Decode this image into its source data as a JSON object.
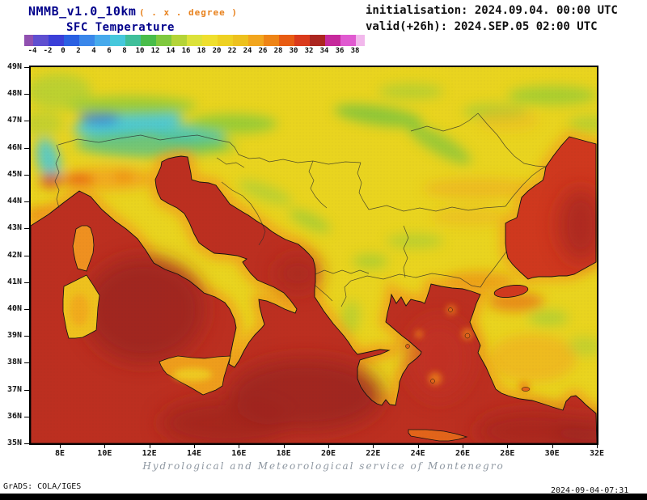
{
  "header": {
    "model_title": "NMMB_v1.0_10km",
    "degree_note": "( . x . degree )",
    "field_title": "SFC Temperature",
    "init_line": "initialisation: 2024.09.04. 00:00 UTC",
    "valid_line": "valid(+26h): 2024.SEP.05 02:00 UTC"
  },
  "colorbar": {
    "tick_labels": [
      "-4",
      "-2",
      "0",
      "2",
      "4",
      "6",
      "8",
      "10",
      "12",
      "14",
      "16",
      "18",
      "20",
      "22",
      "24",
      "26",
      "28",
      "30",
      "32",
      "34",
      "36",
      "38"
    ],
    "cell_colors": [
      "#9050b0",
      "#5f4fd0",
      "#3b3fd8",
      "#2a60e2",
      "#3a87ea",
      "#47aaec",
      "#46c8dc",
      "#3fbf9a",
      "#49bd4a",
      "#7fc93e",
      "#b4d438",
      "#dce23a",
      "#efdf2e",
      "#eed122",
      "#edc11e",
      "#f2a61e",
      "#ee8416",
      "#e85c13",
      "#da3a1c",
      "#ab2620",
      "#c6299c",
      "#e05ad0",
      "#f2b8ec"
    ]
  },
  "map": {
    "lat_labels": [
      "49N",
      "48N",
      "47N",
      "46N",
      "45N",
      "44N",
      "43N",
      "42N",
      "41N",
      "40N",
      "39N",
      "38N",
      "37N",
      "36N",
      "35N"
    ],
    "lon_labels": [
      "8E",
      "10E",
      "12E",
      "14E",
      "16E",
      "18E",
      "20E",
      "22E",
      "24E",
      "26E",
      "28E",
      "30E",
      "32E"
    ],
    "colors": {
      "land_base": "#e9d41f",
      "sea_hot": "#bc2f20",
      "sea_core": "#9c2420",
      "coast_halo": "#f29a1a",
      "alps_cold": "#46c8dc"
    }
  },
  "footer": {
    "service_line": "Hydrological and Meteorological service of Montenegro",
    "grads_credit": "GrADS: COLA/IGES",
    "generated": "2024-09-04-07:31"
  }
}
